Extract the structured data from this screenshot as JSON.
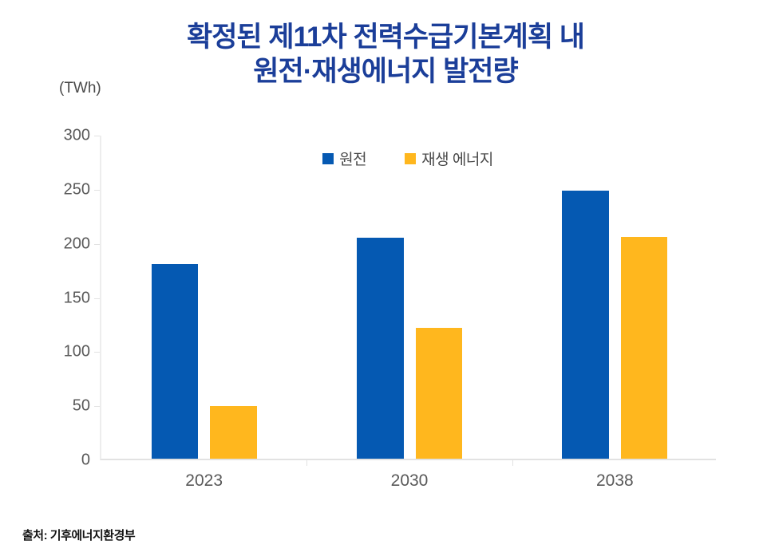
{
  "header": {
    "title_line1": "확정된 제11차 전력수급기본계획 내",
    "title_line2": "원전·재생에너지 발전량"
  },
  "chart": {
    "unit_label": "(TWh)"
  },
  "footer": {
    "source": "출처: 기후에너지환경부"
  },
  "colors": {
    "title": "#1B3E99",
    "nuclear_bar": "#0559B2",
    "renewable_bar": "#FFB71E",
    "axis_text": "#595959",
    "axis_line": "#e2e2e2"
  },
  "chart_data": {
    "type": "bar",
    "title": "확정된 제11차 전력수급기본계획 내 원전·재생에너지 발전량",
    "xlabel": "",
    "ylabel": "(TWh)",
    "categories": [
      "2023",
      "2030",
      "2038"
    ],
    "series": [
      {
        "name": "원전",
        "color": "#0559B2",
        "values": [
          180,
          204,
          248
        ]
      },
      {
        "name": "재생 에너지",
        "color": "#FFB71E",
        "values": [
          49,
          121,
          205
        ]
      }
    ],
    "ylim": [
      0,
      300
    ],
    "y_ticks": [
      0,
      50,
      100,
      150,
      200,
      250,
      300
    ],
    "grid": false,
    "legend_position": "top-center",
    "source": "출처: 기후에너지환경부"
  }
}
